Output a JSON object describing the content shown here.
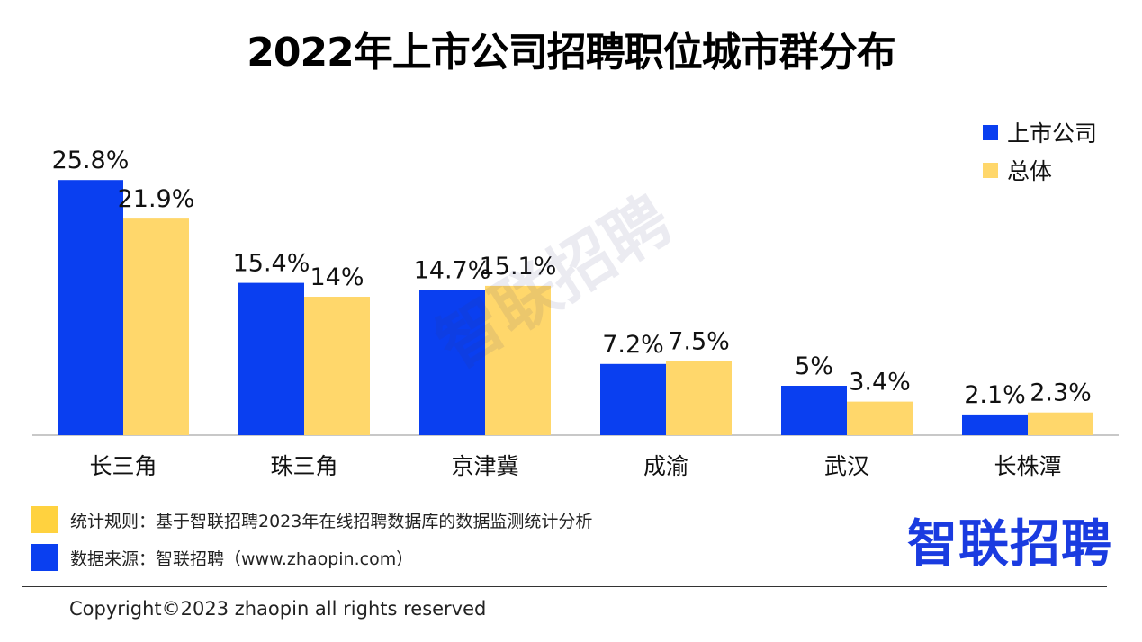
{
  "title": "2022年上市公司招聘职位城市群分布",
  "legend": [
    {
      "label": "上市公司",
      "color": "#0a3ff0"
    },
    {
      "label": "总体",
      "color": "#ffd76b"
    }
  ],
  "chart_data": {
    "type": "bar",
    "title": "2022年上市公司招聘职位城市群分布",
    "categories": [
      "长三角",
      "珠三角",
      "京津冀",
      "成渝",
      "武汉",
      "长株潭"
    ],
    "series": [
      {
        "name": "上市公司",
        "values": [
          25.8,
          15.4,
          14.7,
          7.2,
          5,
          2.1
        ],
        "labels": [
          "25.8%",
          "15.4%",
          "14.7%",
          "7.2%",
          "5%",
          "2.1%"
        ],
        "color": "#0a3ff0"
      },
      {
        "name": "总体",
        "values": [
          21.9,
          14,
          15.1,
          7.5,
          3.4,
          2.3
        ],
        "labels": [
          "21.9%",
          "14%",
          "15.1%",
          "7.5%",
          "3.4%",
          "2.3%"
        ],
        "color": "#ffd76b"
      }
    ],
    "xlabel": "",
    "ylabel": "",
    "ylim": [
      0,
      28
    ],
    "grid": false,
    "legend_position": "top-right"
  },
  "watermark": "智联招聘",
  "footnotes": [
    {
      "text": "统计规则：基于智联招聘2023年在线招聘数据库的数据监测统计分析",
      "color": "#ffd23f"
    },
    {
      "text": "数据来源：智联招聘（www.zhaopin.com）",
      "color": "#0a3ff0"
    }
  ],
  "brand": "智联招聘",
  "copyright": "Copyright©2023 zhaopin all rights reserved"
}
